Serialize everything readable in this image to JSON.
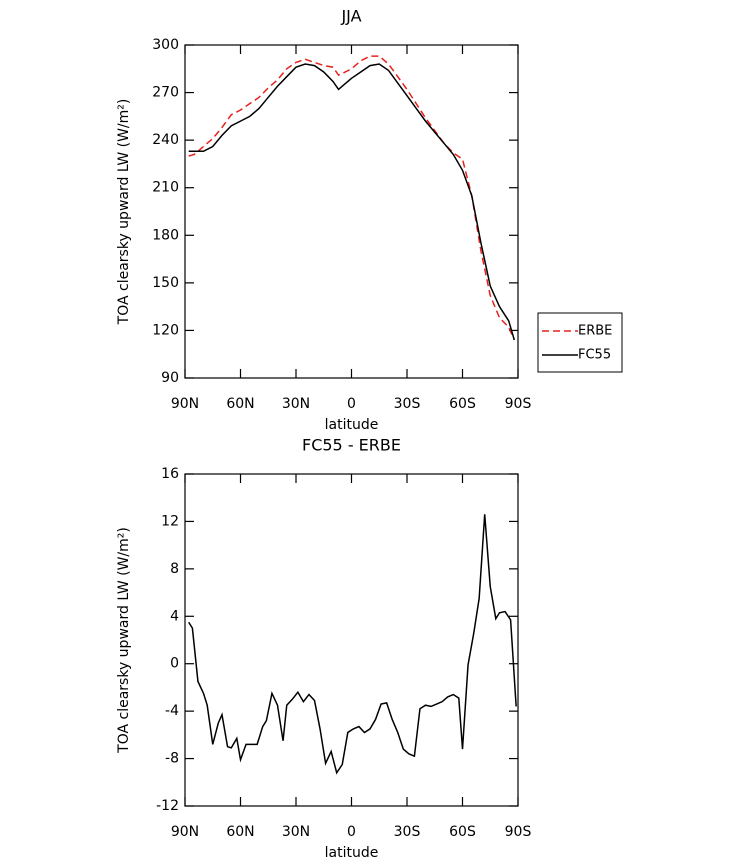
{
  "chart_data": [
    {
      "type": "line",
      "title": "JJA",
      "xlabel": "latitude",
      "ylabel": "TOA clearsky upward LW (W/m²)",
      "x": [
        88,
        85,
        80,
        75,
        70,
        65,
        60,
        55,
        50,
        45,
        40,
        35,
        30,
        25,
        20,
        15,
        10,
        7,
        5,
        0,
        -5,
        -10,
        -15,
        -20,
        -25,
        -30,
        -35,
        -40,
        -45,
        -50,
        -55,
        -60,
        -65,
        -70,
        -75,
        -80,
        -85,
        -88
      ],
      "series": [
        {
          "name": "ERBE",
          "color": "#e8201c",
          "linestyle": "dashed",
          "values": [
            230,
            231,
            236,
            241,
            248,
            256,
            259,
            263,
            267,
            273,
            278,
            285,
            289,
            291,
            289,
            287,
            286,
            281,
            282,
            285,
            290,
            293,
            293,
            288,
            280,
            272,
            263,
            254,
            246,
            238,
            232,
            228,
            205,
            170,
            142,
            128,
            122,
            114
          ]
        },
        {
          "name": "FC55",
          "color": "#000000",
          "linestyle": "solid",
          "values": [
            233,
            233,
            233,
            236,
            243,
            249,
            252,
            255,
            260,
            267,
            274,
            280,
            286,
            288,
            287,
            283,
            277,
            272,
            274,
            279,
            283,
            287,
            288,
            284,
            276,
            268,
            260,
            252,
            245,
            238,
            231,
            221,
            205,
            175,
            148,
            135,
            126,
            114
          ]
        }
      ],
      "xlim": [
        90,
        -90
      ],
      "xticks": [
        {
          "value": 90,
          "label": "90N"
        },
        {
          "value": 60,
          "label": "60N"
        },
        {
          "value": 30,
          "label": "30N"
        },
        0,
        {
          "value": -30,
          "label": "30S"
        },
        {
          "value": -60,
          "label": "60S"
        },
        {
          "value": -90,
          "label": "90S"
        }
      ],
      "ylim": [
        90,
        300
      ],
      "yticks": [
        90,
        120,
        150,
        180,
        210,
        240,
        270,
        300
      ],
      "legend": "outside right"
    },
    {
      "type": "line",
      "title": "FC55 - ERBE",
      "xlabel": "latitude",
      "ylabel": "TOA clearsky upward LW (W/m²)",
      "x": [
        88,
        86,
        83,
        80,
        78,
        75,
        72,
        70,
        67,
        65,
        62,
        60,
        57,
        54,
        51,
        48,
        46,
        43,
        40,
        37,
        35,
        32,
        29,
        26,
        23,
        20,
        17,
        14,
        11,
        8,
        5,
        2,
        -1,
        -4,
        -7,
        -10,
        -13,
        -16,
        -19,
        -22,
        -25,
        -28,
        -31,
        -34,
        -37,
        -40,
        -43,
        -46,
        -49,
        -52,
        -55,
        -58,
        -60,
        -63,
        -66,
        -69,
        -72,
        -75,
        -78,
        -80,
        -83,
        -86,
        -89
      ],
      "series": [
        {
          "color": "#000000",
          "linestyle": "solid",
          "values": [
            3.5,
            3.0,
            -1.5,
            -2.5,
            -3.5,
            -6.8,
            -5,
            -4.3,
            -7,
            -7.1,
            -6.3,
            -8.1,
            -6.8,
            -6.8,
            -6.8,
            -5.3,
            -4.8,
            -2.5,
            -3.5,
            -6.5,
            -3.5,
            -3,
            -2.4,
            -3.2,
            -2.6,
            -3.1,
            -5.5,
            -8.4,
            -7.4,
            -9.2,
            -8.5,
            -5.8,
            -5.5,
            -5.3,
            -5.8,
            -5.5,
            -4.7,
            -3.4,
            -3.3,
            -4.7,
            -5.8,
            -7.2,
            -7.6,
            -7.8,
            -3.8,
            -3.5,
            -3.6,
            -3.4,
            -3.2,
            -2.8,
            -2.6,
            -2.9,
            -7.2,
            -0.1,
            2.5,
            5.5,
            12.6,
            6.5,
            3.8,
            4.3,
            4.4,
            3.7,
            -3.6
          ]
        }
      ],
      "xlim": [
        90,
        -90
      ],
      "xticks": [
        {
          "value": 90,
          "label": "90N"
        },
        {
          "value": 60,
          "label": "60N"
        },
        {
          "value": 30,
          "label": "30N"
        },
        0,
        {
          "value": -30,
          "label": "30S"
        },
        {
          "value": -60,
          "label": "60S"
        },
        {
          "value": -90,
          "label": "90S"
        }
      ],
      "ylim": [
        -12,
        16
      ],
      "yticks": [
        -12,
        -8,
        -4,
        0,
        4,
        8,
        12,
        16
      ]
    }
  ]
}
